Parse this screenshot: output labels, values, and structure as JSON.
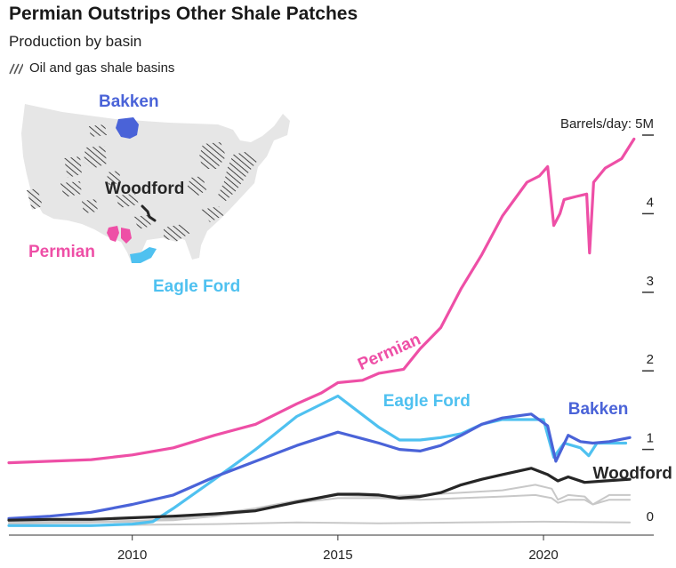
{
  "title": "Permian Outstrips Other Shale Patches",
  "subtitle": "Production by basin",
  "legend": {
    "label": "Oil and gas shale basins",
    "icon": "hatch-swatch-icon"
  },
  "map": {
    "labels": {
      "bakken": "Bakken",
      "woodford": "Woodford",
      "permian": "Permian",
      "eagle_ford": "Eagle Ford"
    }
  },
  "colors": {
    "permian": "#ee4fa6",
    "eagle_ford": "#4fc1f0",
    "bakken": "#4a63d8",
    "woodford": "#262626",
    "other": "#c8c8c8",
    "map_fill": "#e6e6e6"
  },
  "chart_data": {
    "type": "line",
    "title": "Permian Outstrips Other Shale Patches",
    "subtitle": "Production by basin",
    "ylabel": "Barrels/day",
    "ylim": [
      0,
      5
    ],
    "xlim": [
      2007,
      2022.4
    ],
    "y_ticks": [
      {
        "value": 0,
        "label": "0"
      },
      {
        "value": 1,
        "label": "1"
      },
      {
        "value": 2,
        "label": "2"
      },
      {
        "value": 3,
        "label": "3"
      },
      {
        "value": 4,
        "label": "4"
      },
      {
        "value": 5,
        "label": "Barrels/day: 5M"
      }
    ],
    "x_ticks": [
      {
        "value": 2010,
        "label": "2010"
      },
      {
        "value": 2015,
        "label": "2015"
      },
      {
        "value": 2020,
        "label": "2020"
      }
    ],
    "grid": false,
    "legend": "direct labels",
    "series": [
      {
        "name": "Permian",
        "color": "#ee4fa6",
        "labeled": true,
        "points": [
          [
            2007,
            0.83
          ],
          [
            2008,
            0.85
          ],
          [
            2009,
            0.87
          ],
          [
            2010,
            0.93
          ],
          [
            2011,
            1.02
          ],
          [
            2012,
            1.18
          ],
          [
            2013,
            1.32
          ],
          [
            2014,
            1.58
          ],
          [
            2014.6,
            1.72
          ],
          [
            2015,
            1.85
          ],
          [
            2015.6,
            1.88
          ],
          [
            2016,
            1.97
          ],
          [
            2016.6,
            2.02
          ],
          [
            2017,
            2.28
          ],
          [
            2017.5,
            2.55
          ],
          [
            2018,
            3.05
          ],
          [
            2018.5,
            3.48
          ],
          [
            2019,
            3.97
          ],
          [
            2019.6,
            4.4
          ],
          [
            2019.9,
            4.48
          ],
          [
            2020.1,
            4.6
          ],
          [
            2020.25,
            3.85
          ],
          [
            2020.4,
            4.0
          ],
          [
            2020.5,
            4.18
          ],
          [
            2020.8,
            4.22
          ],
          [
            2021.05,
            4.25
          ],
          [
            2021.12,
            3.5
          ],
          [
            2021.22,
            4.4
          ],
          [
            2021.5,
            4.58
          ],
          [
            2021.9,
            4.7
          ],
          [
            2022.2,
            4.95
          ]
        ]
      },
      {
        "name": "Eagle Ford",
        "color": "#4fc1f0",
        "labeled": true,
        "points": [
          [
            2007,
            0.03
          ],
          [
            2009,
            0.03
          ],
          [
            2010,
            0.05
          ],
          [
            2010.5,
            0.08
          ],
          [
            2011,
            0.25
          ],
          [
            2012,
            0.62
          ],
          [
            2013,
            1.0
          ],
          [
            2014,
            1.42
          ],
          [
            2015,
            1.68
          ],
          [
            2015.5,
            1.48
          ],
          [
            2016,
            1.28
          ],
          [
            2016.5,
            1.12
          ],
          [
            2017,
            1.12
          ],
          [
            2017.5,
            1.15
          ],
          [
            2018,
            1.2
          ],
          [
            2018.5,
            1.32
          ],
          [
            2019,
            1.38
          ],
          [
            2019.5,
            1.38
          ],
          [
            2020,
            1.38
          ],
          [
            2020.25,
            0.9
          ],
          [
            2020.5,
            1.08
          ],
          [
            2020.9,
            1.02
          ],
          [
            2021.1,
            0.92
          ],
          [
            2021.3,
            1.08
          ],
          [
            2022,
            1.08
          ]
        ]
      },
      {
        "name": "Bakken",
        "color": "#4a63d8",
        "labeled": true,
        "points": [
          [
            2007,
            0.12
          ],
          [
            2008,
            0.15
          ],
          [
            2009,
            0.2
          ],
          [
            2010,
            0.3
          ],
          [
            2011,
            0.42
          ],
          [
            2012,
            0.65
          ],
          [
            2013,
            0.85
          ],
          [
            2014,
            1.05
          ],
          [
            2015,
            1.22
          ],
          [
            2015.5,
            1.15
          ],
          [
            2016,
            1.08
          ],
          [
            2016.5,
            1.0
          ],
          [
            2017,
            0.98
          ],
          [
            2017.5,
            1.05
          ],
          [
            2018,
            1.18
          ],
          [
            2018.5,
            1.32
          ],
          [
            2019,
            1.4
          ],
          [
            2019.7,
            1.45
          ],
          [
            2020.1,
            1.3
          ],
          [
            2020.3,
            0.85
          ],
          [
            2020.6,
            1.18
          ],
          [
            2020.9,
            1.1
          ],
          [
            2021.2,
            1.08
          ],
          [
            2021.6,
            1.1
          ],
          [
            2022.1,
            1.15
          ]
        ]
      },
      {
        "name": "Woodford",
        "color": "#262626",
        "labeled": true,
        "points": [
          [
            2007,
            0.1
          ],
          [
            2008,
            0.11
          ],
          [
            2009,
            0.11
          ],
          [
            2010,
            0.13
          ],
          [
            2011,
            0.15
          ],
          [
            2012,
            0.18
          ],
          [
            2013,
            0.22
          ],
          [
            2014,
            0.33
          ],
          [
            2015,
            0.43
          ],
          [
            2015.5,
            0.43
          ],
          [
            2016,
            0.42
          ],
          [
            2016.5,
            0.38
          ],
          [
            2017,
            0.4
          ],
          [
            2017.5,
            0.45
          ],
          [
            2018,
            0.55
          ],
          [
            2018.5,
            0.62
          ],
          [
            2019,
            0.68
          ],
          [
            2019.7,
            0.76
          ],
          [
            2020.1,
            0.68
          ],
          [
            2020.35,
            0.6
          ],
          [
            2020.6,
            0.65
          ],
          [
            2021,
            0.58
          ],
          [
            2021.5,
            0.6
          ],
          [
            2022.1,
            0.62
          ]
        ]
      },
      {
        "name": "",
        "color": "#c8c8c8",
        "labeled": false,
        "points": [
          [
            2007,
            0.08
          ],
          [
            2009,
            0.08
          ],
          [
            2010,
            0.09
          ],
          [
            2011,
            0.1
          ],
          [
            2012,
            0.15
          ],
          [
            2013,
            0.22
          ],
          [
            2014,
            0.32
          ],
          [
            2015,
            0.38
          ],
          [
            2016,
            0.38
          ],
          [
            2017,
            0.36
          ],
          [
            2018,
            0.38
          ],
          [
            2019,
            0.4
          ],
          [
            2019.8,
            0.42
          ],
          [
            2020.2,
            0.38
          ],
          [
            2020.35,
            0.32
          ],
          [
            2020.6,
            0.36
          ],
          [
            2021,
            0.36
          ],
          [
            2021.2,
            0.3
          ],
          [
            2021.6,
            0.36
          ],
          [
            2022.1,
            0.36
          ]
        ]
      },
      {
        "name": "",
        "color": "#c8c8c8",
        "labeled": false,
        "points": [
          [
            2007,
            0.06
          ],
          [
            2009,
            0.07
          ],
          [
            2010,
            0.08
          ],
          [
            2011,
            0.12
          ],
          [
            2012,
            0.18
          ],
          [
            2013,
            0.25
          ],
          [
            2014,
            0.35
          ],
          [
            2015,
            0.42
          ],
          [
            2016,
            0.4
          ],
          [
            2017,
            0.42
          ],
          [
            2018,
            0.45
          ],
          [
            2019,
            0.48
          ],
          [
            2019.8,
            0.55
          ],
          [
            2020.2,
            0.5
          ],
          [
            2020.35,
            0.36
          ],
          [
            2020.6,
            0.42
          ],
          [
            2021,
            0.4
          ],
          [
            2021.2,
            0.3
          ],
          [
            2021.6,
            0.42
          ],
          [
            2022.1,
            0.42
          ]
        ]
      },
      {
        "name": "",
        "color": "#c8c8c8",
        "labeled": false,
        "points": [
          [
            2007,
            0.04
          ],
          [
            2010,
            0.04
          ],
          [
            2012,
            0.05
          ],
          [
            2014,
            0.07
          ],
          [
            2016,
            0.06
          ],
          [
            2018,
            0.07
          ],
          [
            2020,
            0.08
          ],
          [
            2022.1,
            0.07
          ]
        ]
      }
    ]
  }
}
